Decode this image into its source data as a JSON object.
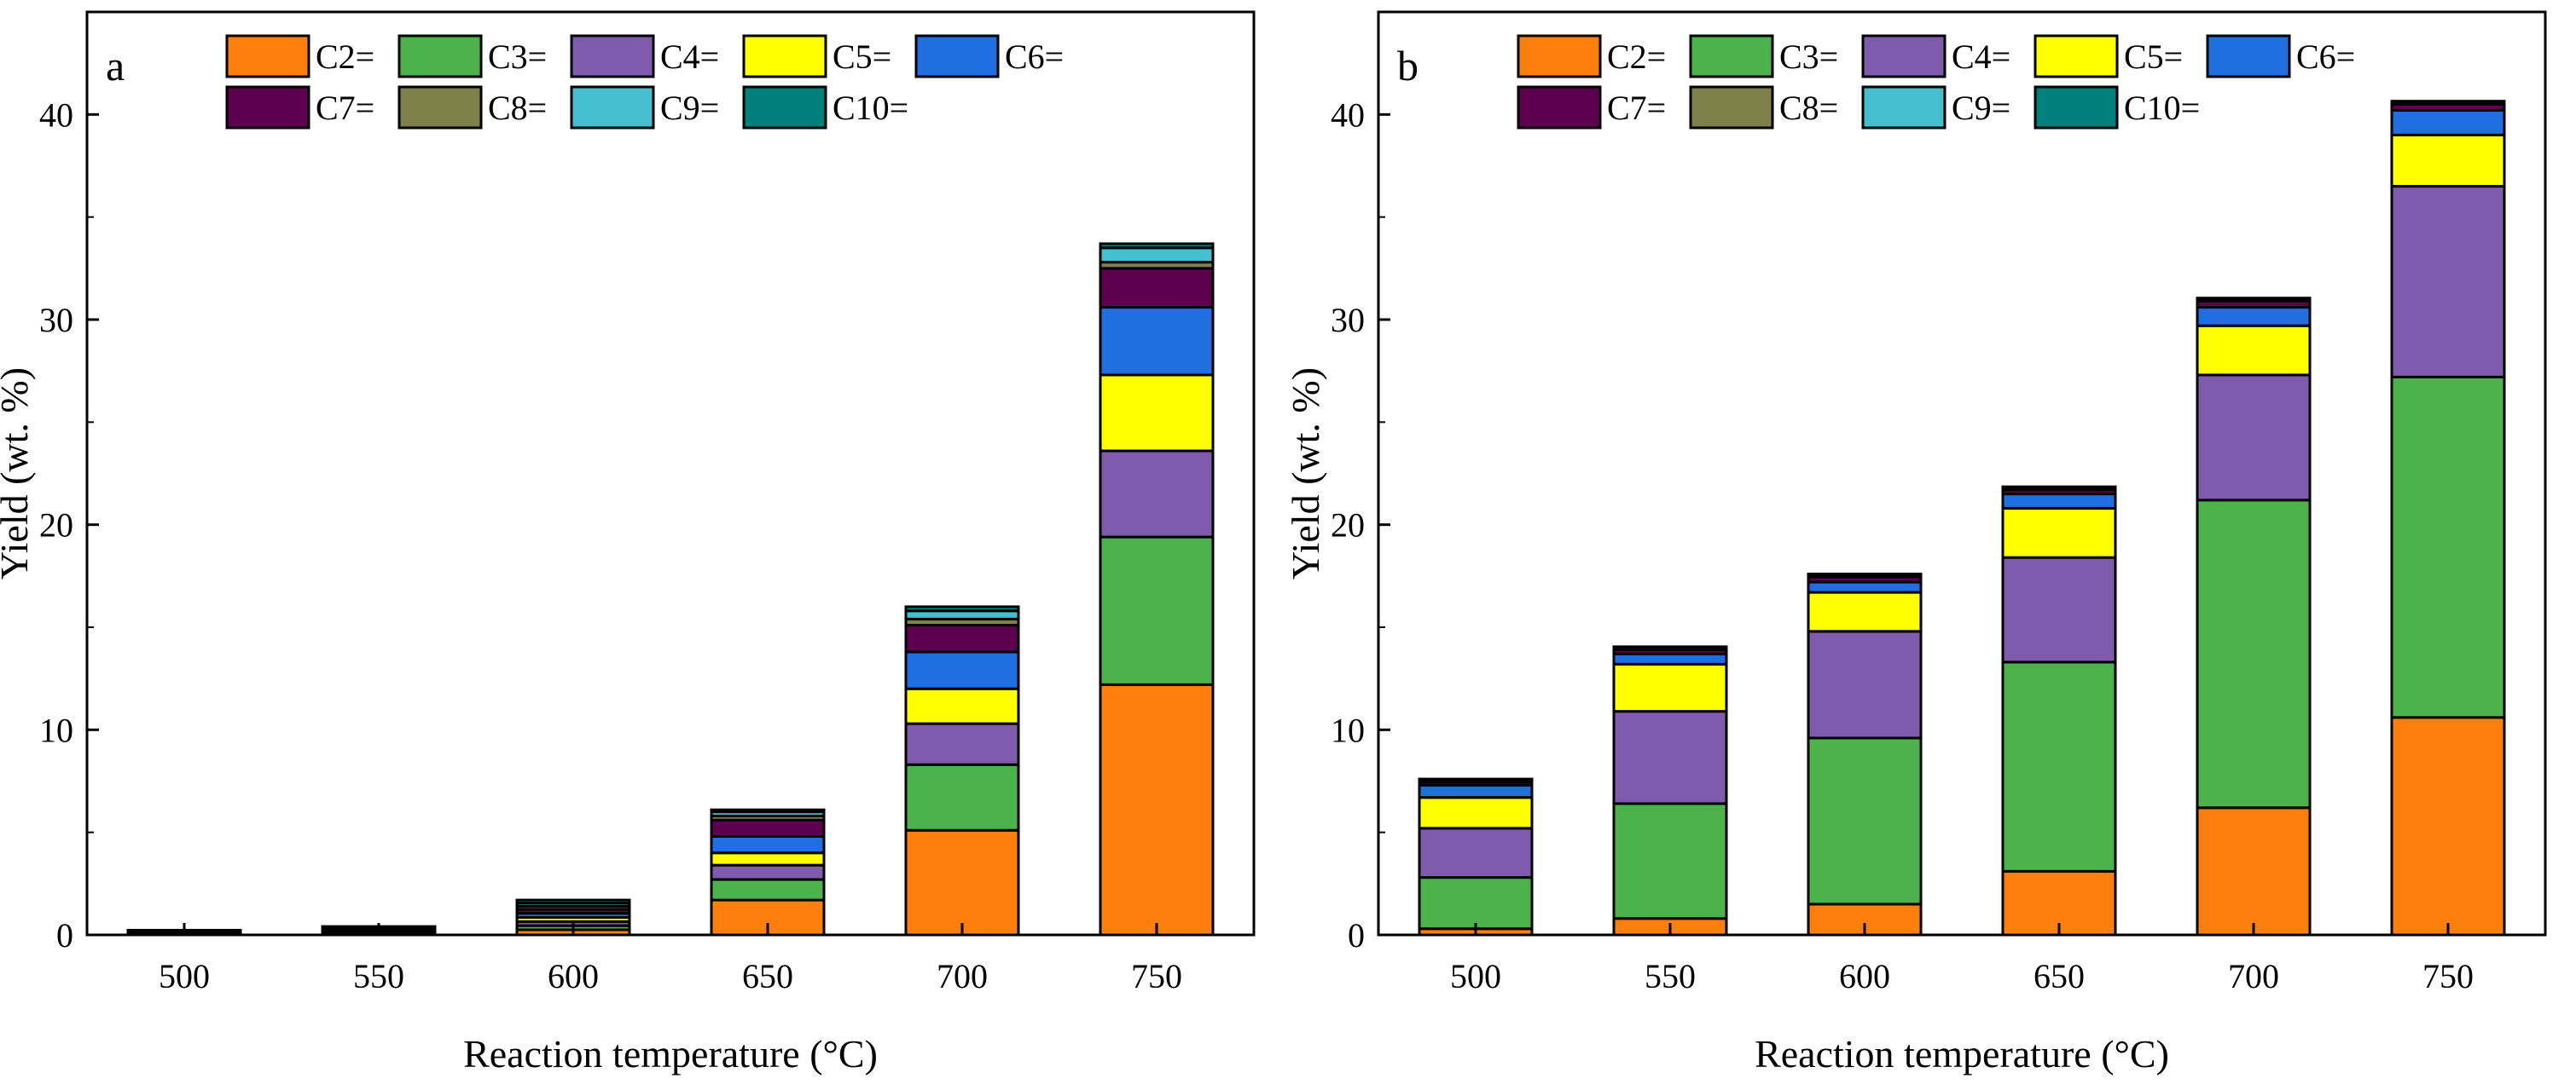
{
  "figure": {
    "colors": {
      "C2=": "#ff7f0e",
      "C3=": "#4cb34c",
      "C4=": "#7f5aad",
      "C5=": "#ffff00",
      "C6=": "#1f6fe0",
      "C7=": "#5e0050",
      "C8=": "#7f814a",
      "C9=": "#45bfcf",
      "C10=": "#00807d"
    }
  },
  "chart_data": [
    {
      "type": "bar",
      "stacked": true,
      "panel_label": "a",
      "categories": [
        "500",
        "550",
        "600",
        "650",
        "700",
        "750"
      ],
      "xlabel": "Reaction temperature (°C)",
      "ylabel": "Yield (wt. %)",
      "ylim": [
        0,
        45
      ],
      "yticks": [
        0,
        10,
        20,
        30,
        40
      ],
      "legend": [
        "C2=",
        "C3=",
        "C4=",
        "C5=",
        "C6=",
        "C7=",
        "C8=",
        "C9=",
        "C10="
      ],
      "legend_position": "top-left",
      "series": [
        {
          "name": "C2=",
          "values": [
            0.02,
            0.04,
            0.25,
            1.7,
            5.1,
            12.2
          ]
        },
        {
          "name": "C3=",
          "values": [
            0.02,
            0.04,
            0.2,
            1.0,
            3.2,
            7.2
          ]
        },
        {
          "name": "C4=",
          "values": [
            0.02,
            0.04,
            0.2,
            0.7,
            2.0,
            4.2
          ]
        },
        {
          "name": "C5=",
          "values": [
            0.02,
            0.04,
            0.2,
            0.6,
            1.7,
            3.7
          ]
        },
        {
          "name": "C6=",
          "values": [
            0.03,
            0.05,
            0.2,
            0.8,
            1.8,
            3.3
          ]
        },
        {
          "name": "C7=",
          "values": [
            0.03,
            0.05,
            0.2,
            0.8,
            1.3,
            1.9
          ]
        },
        {
          "name": "C8=",
          "values": [
            0.03,
            0.05,
            0.15,
            0.2,
            0.3,
            0.3
          ]
        },
        {
          "name": "C9=",
          "values": [
            0.03,
            0.05,
            0.15,
            0.2,
            0.4,
            0.7
          ]
        },
        {
          "name": "C10=",
          "values": [
            0.03,
            0.05,
            0.15,
            0.1,
            0.2,
            0.2
          ]
        }
      ]
    },
    {
      "type": "bar",
      "stacked": true,
      "panel_label": "b",
      "categories": [
        "500",
        "550",
        "600",
        "650",
        "700",
        "750"
      ],
      "xlabel": "Reaction temperature (°C)",
      "ylabel": "Yield (wt. %)",
      "ylim": [
        0,
        45
      ],
      "yticks": [
        0,
        10,
        20,
        30,
        40
      ],
      "legend": [
        "C2=",
        "C3=",
        "C4=",
        "C5=",
        "C6=",
        "C7=",
        "C8=",
        "C9=",
        "C10="
      ],
      "legend_position": "top-left",
      "series": [
        {
          "name": "C2=",
          "values": [
            0.3,
            0.8,
            1.5,
            3.1,
            6.2,
            10.6
          ]
        },
        {
          "name": "C3=",
          "values": [
            2.5,
            5.6,
            8.1,
            10.2,
            15.0,
            16.6
          ]
        },
        {
          "name": "C4=",
          "values": [
            2.4,
            4.5,
            5.2,
            5.1,
            6.1,
            9.3
          ]
        },
        {
          "name": "C5=",
          "values": [
            1.5,
            2.3,
            1.9,
            2.4,
            2.4,
            2.5
          ]
        },
        {
          "name": "C6=",
          "values": [
            0.6,
            0.5,
            0.5,
            0.7,
            0.9,
            1.2
          ]
        },
        {
          "name": "C7=",
          "values": [
            0.15,
            0.2,
            0.25,
            0.2,
            0.3,
            0.3
          ]
        },
        {
          "name": "C8=",
          "values": [
            0.05,
            0.05,
            0.05,
            0.05,
            0.05,
            0.05
          ]
        },
        {
          "name": "C9=",
          "values": [
            0.05,
            0.05,
            0.05,
            0.05,
            0.05,
            0.05
          ]
        },
        {
          "name": "C10=",
          "values": [
            0.05,
            0.05,
            0.05,
            0.05,
            0.05,
            0.05
          ]
        }
      ]
    }
  ]
}
